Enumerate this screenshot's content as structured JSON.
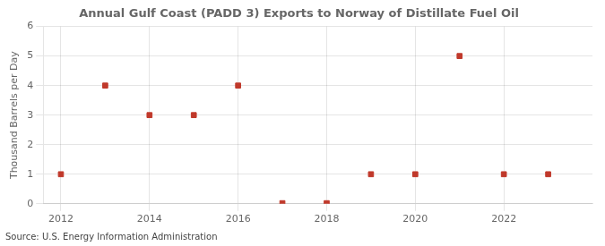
{
  "chart_data": {
    "type": "scatter",
    "title": "Annual Gulf Coast (PADD 3) Exports to Norway of Distillate Fuel Oil",
    "ylabel": "Thousand Barrels per Day",
    "source": "Source: U.S. Energy Information Administration",
    "x": [
      2012,
      2013,
      2014,
      2015,
      2016,
      2017,
      2018,
      2019,
      2020,
      2021,
      2022,
      2023
    ],
    "values": [
      1,
      4,
      3,
      3,
      4,
      0.02,
      0.02,
      1,
      1,
      5,
      1,
      1
    ],
    "color": "#c0392b",
    "marker": "square",
    "xlim": [
      2011.6,
      2024.0
    ],
    "xticks": [
      2012,
      2014,
      2016,
      2018,
      2020,
      2022
    ],
    "ylim": [
      0,
      6
    ],
    "yticks": [
      0,
      1,
      2,
      3,
      4,
      5,
      6
    ],
    "grid": true
  }
}
